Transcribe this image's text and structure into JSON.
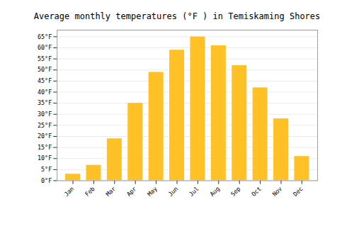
{
  "chart_data": {
    "type": "bar",
    "title": "Average monthly temperatures (°F ) in Temiskaming Shores",
    "categories": [
      "Jan",
      "Feb",
      "Mar",
      "Apr",
      "May",
      "Jun",
      "Jul",
      "Aug",
      "Sep",
      "Oct",
      "Nov",
      "Dec"
    ],
    "values": [
      3,
      7,
      19,
      35,
      49,
      59,
      65,
      61,
      52,
      42,
      28,
      11
    ],
    "color": "#FFC125",
    "ylim": [
      0,
      68
    ],
    "yticks": [
      {
        "value": 0,
        "label": "0°F"
      },
      {
        "value": 5,
        "label": "5°F"
      },
      {
        "value": 10,
        "label": "10°F"
      },
      {
        "value": 15,
        "label": "15°F"
      },
      {
        "value": 20,
        "label": "20°F"
      },
      {
        "value": 25,
        "label": "25°F"
      },
      {
        "value": 30,
        "label": "30°F"
      },
      {
        "value": 35,
        "label": "35°F"
      },
      {
        "value": 40,
        "label": "40°F"
      },
      {
        "value": 45,
        "label": "45°F"
      },
      {
        "value": 50,
        "label": "50°F"
      },
      {
        "value": 55,
        "label": "55°F"
      },
      {
        "value": 60,
        "label": "60°F"
      },
      {
        "value": 65,
        "label": "65°F"
      }
    ],
    "grid": true
  }
}
